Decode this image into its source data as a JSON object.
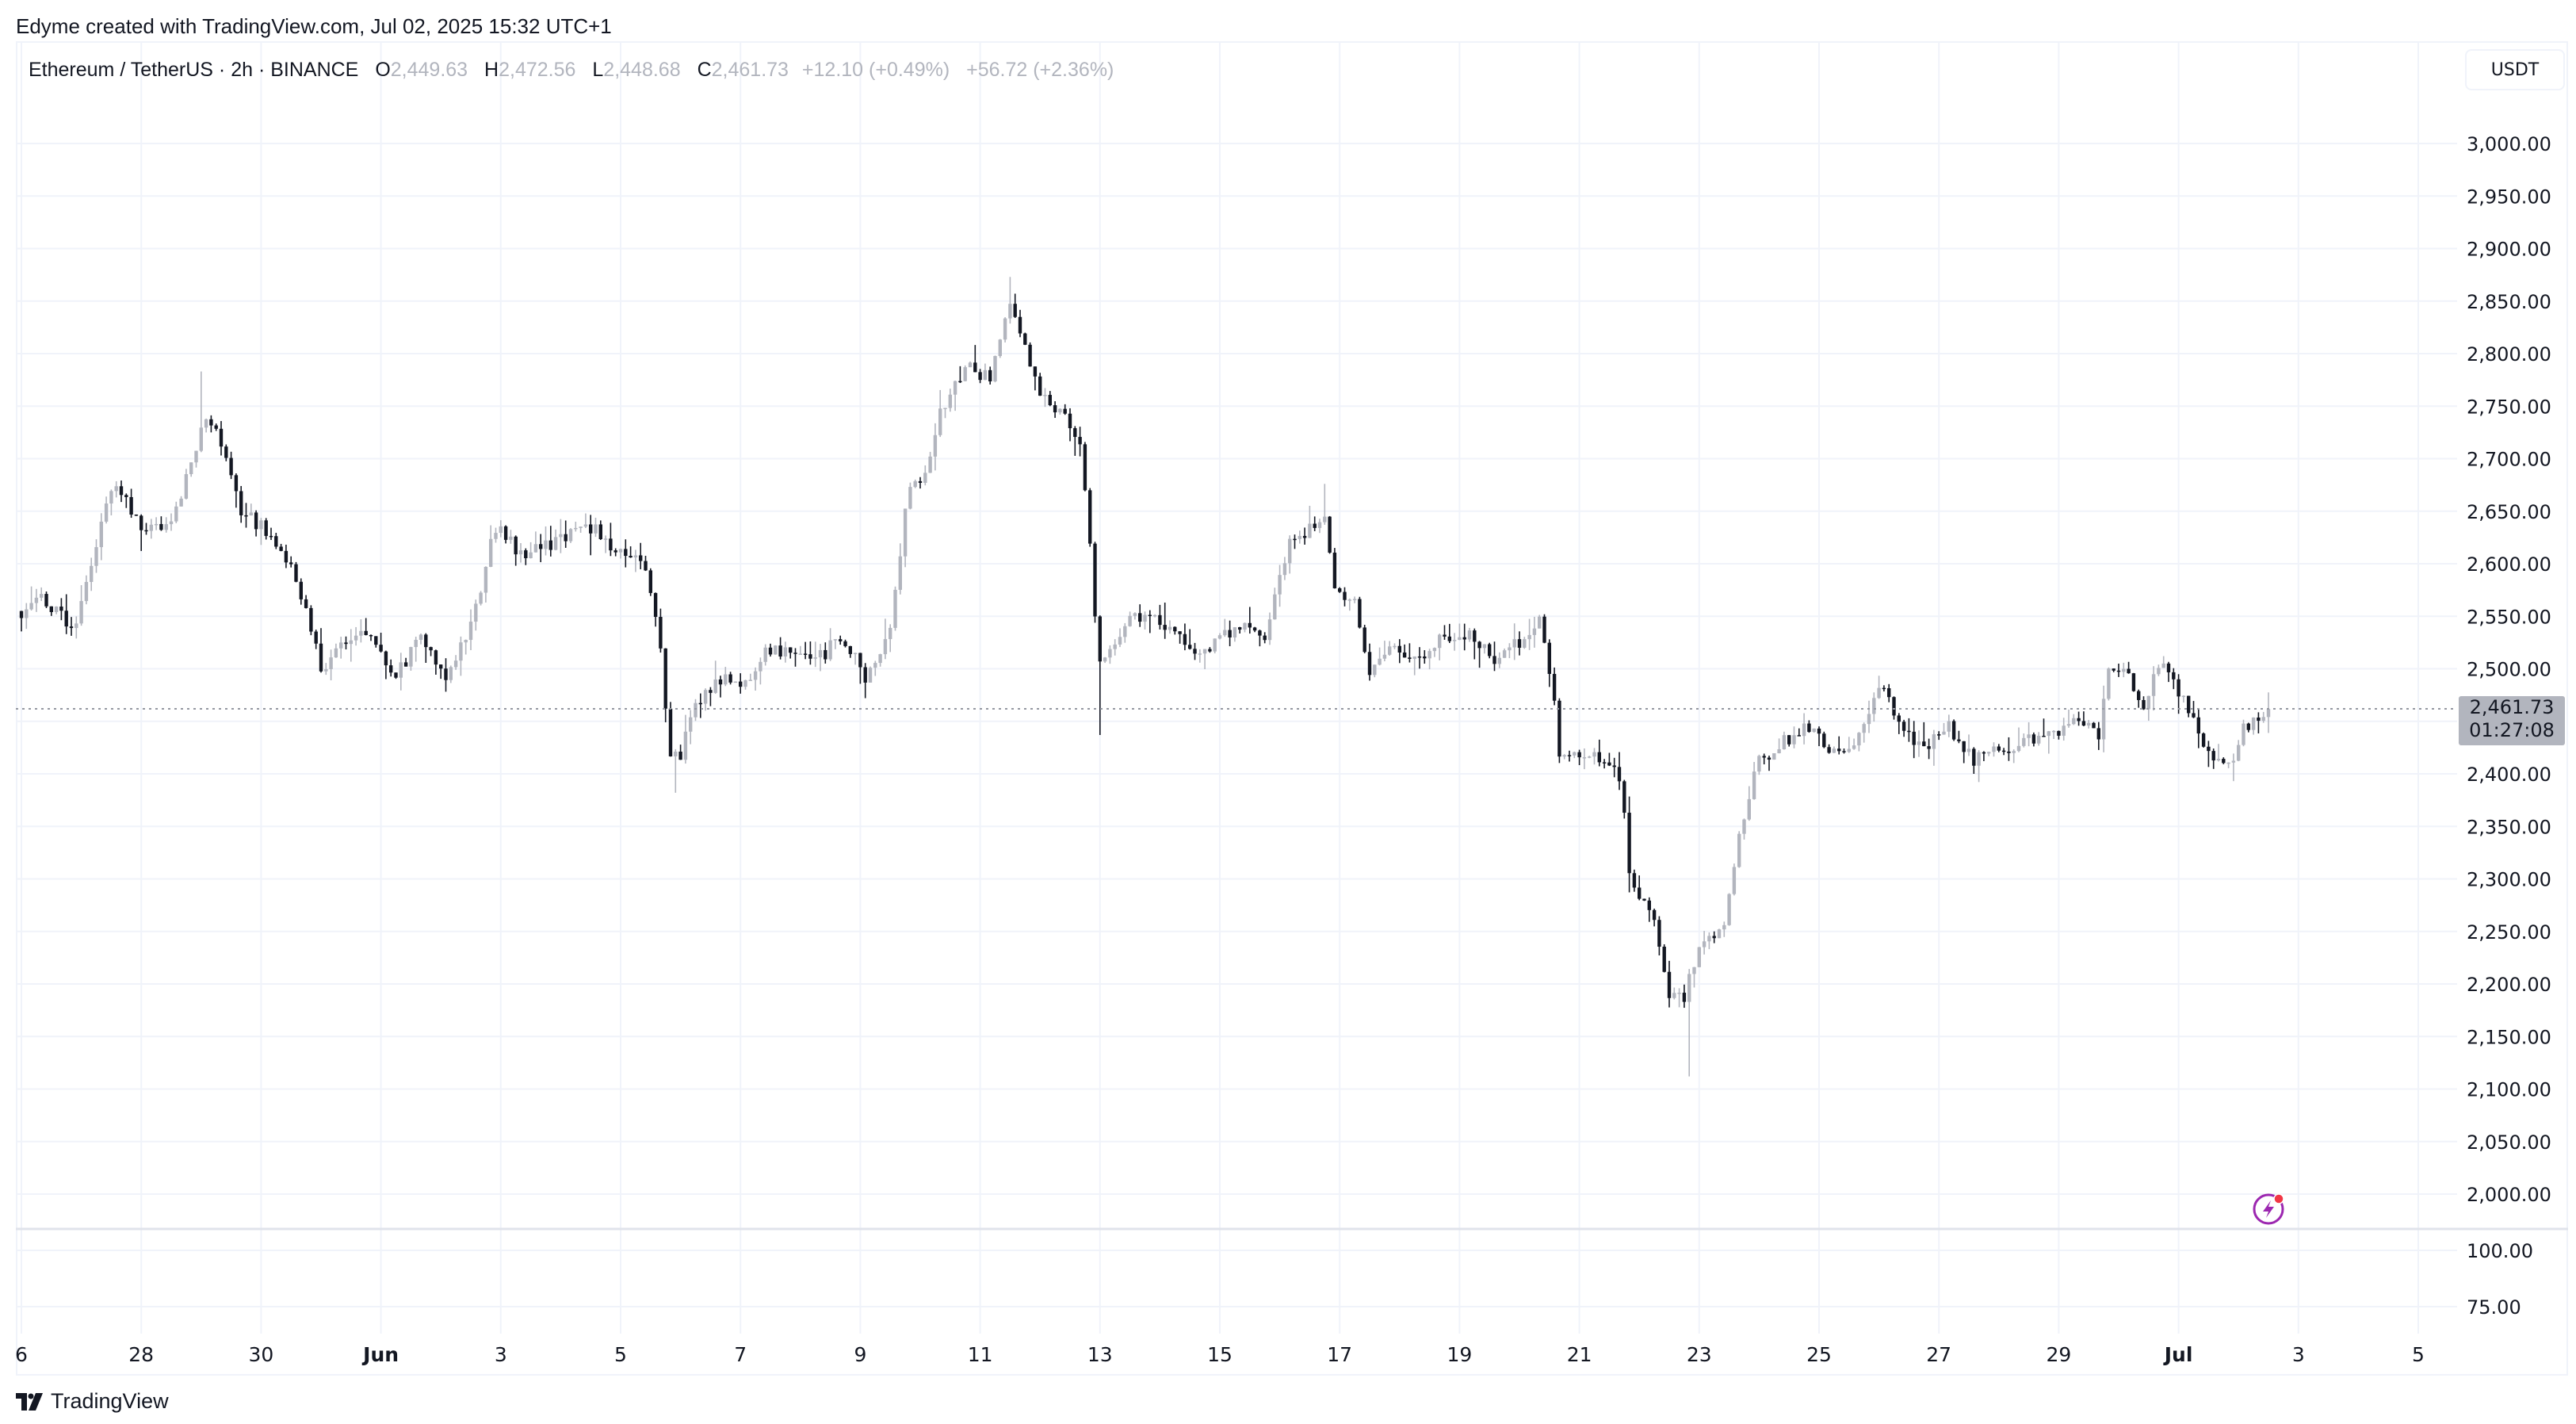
{
  "credit": "Edyme created with TradingView.com, Jul 02, 2025 15:32 UTC+1",
  "legend": {
    "symbol": "Ethereum / TetherUS · 2h · BINANCE",
    "o_label": "O",
    "o": "2,449.63",
    "h_label": "H",
    "h": "2,472.56",
    "l_label": "L",
    "l": "2,448.68",
    "c_label": "C",
    "c": "2,461.73",
    "change": "+12.10 (+0.49%)",
    "volume_change": "+56.72 (+2.36%)"
  },
  "currency_button": "USDT",
  "last_price": {
    "price": "2,461.73",
    "countdown": "01:27:08",
    "value": 2461.73
  },
  "volume_axis": [
    "100.00",
    "75.00"
  ],
  "brand": "TradingView",
  "colors": {
    "up": "#b2b5be",
    "down": "#131722",
    "grid": "#f0f3fa",
    "alert": "#9c27b0"
  },
  "chart_data": {
    "type": "candlestick",
    "title": "Ethereum / TetherUS · 2h · BINANCE",
    "interval_hours": 2,
    "x_unit": "days since May 26, 2025",
    "ylim": [
      1975,
      3010
    ],
    "y_ticks": [
      3000,
      2950,
      2900,
      2850,
      2800,
      2750,
      2700,
      2650,
      2600,
      2550,
      2500,
      2450,
      2400,
      2350,
      2300,
      2250,
      2200,
      2150,
      2100,
      2050,
      2000
    ],
    "x_ticks": [
      {
        "day": 0,
        "label": "6",
        "bold": false
      },
      {
        "day": 2,
        "label": "28",
        "bold": false
      },
      {
        "day": 4,
        "label": "30",
        "bold": false
      },
      {
        "day": 6,
        "label": "Jun",
        "bold": true
      },
      {
        "day": 8,
        "label": "3",
        "bold": false
      },
      {
        "day": 10,
        "label": "5",
        "bold": false
      },
      {
        "day": 12,
        "label": "7",
        "bold": false
      },
      {
        "day": 14,
        "label": "9",
        "bold": false
      },
      {
        "day": 16,
        "label": "11",
        "bold": false
      },
      {
        "day": 18,
        "label": "13",
        "bold": false
      },
      {
        "day": 20,
        "label": "15",
        "bold": false
      },
      {
        "day": 22,
        "label": "17",
        "bold": false
      },
      {
        "day": 24,
        "label": "19",
        "bold": false
      },
      {
        "day": 26,
        "label": "21",
        "bold": false
      },
      {
        "day": 28,
        "label": "23",
        "bold": false
      },
      {
        "day": 30,
        "label": "25",
        "bold": false
      },
      {
        "day": 32,
        "label": "27",
        "bold": false
      },
      {
        "day": 34,
        "label": "29",
        "bold": false
      },
      {
        "day": 36,
        "label": "Jul",
        "bold": true
      },
      {
        "day": 38,
        "label": "3",
        "bold": false
      },
      {
        "day": 40,
        "label": "5",
        "bold": false
      }
    ],
    "close_path": [
      [
        0,
        2555
      ],
      [
        0.19,
        2571
      ],
      [
        0.88,
        2539
      ],
      [
        1.16,
        2602
      ],
      [
        1.57,
        2681
      ],
      [
        1.98,
        2634
      ],
      [
        2.4,
        2634
      ],
      [
        2.67,
        2665
      ],
      [
        3.09,
        2744
      ],
      [
        3.36,
        2712
      ],
      [
        3.64,
        2650
      ],
      [
        4.05,
        2634
      ],
      [
        4.46,
        2602
      ],
      [
        4.74,
        2555
      ],
      [
        5.01,
        2500
      ],
      [
        5.43,
        2531
      ],
      [
        5.84,
        2531
      ],
      [
        6.25,
        2492
      ],
      [
        6.67,
        2531
      ],
      [
        7.08,
        2492
      ],
      [
        7.49,
        2539
      ],
      [
        7.91,
        2634
      ],
      [
        8.32,
        2610
      ],
      [
        8.73,
        2618
      ],
      [
        9.15,
        2626
      ],
      [
        9.56,
        2634
      ],
      [
        9.97,
        2610
      ],
      [
        10.39,
        2602
      ],
      [
        10.66,
        2524
      ],
      [
        10.8,
        2421
      ],
      [
        10.99,
        2413
      ],
      [
        11.21,
        2461
      ],
      [
        11.63,
        2492
      ],
      [
        12.04,
        2484
      ],
      [
        12.45,
        2516
      ],
      [
        12.87,
        2516
      ],
      [
        13.28,
        2508
      ],
      [
        13.69,
        2531
      ],
      [
        14.1,
        2492
      ],
      [
        14.52,
        2539
      ],
      [
        14.79,
        2665
      ],
      [
        15.07,
        2681
      ],
      [
        15.34,
        2744
      ],
      [
        15.76,
        2791
      ],
      [
        16.17,
        2775
      ],
      [
        16.53,
        2854
      ],
      [
        16.72,
        2807
      ],
      [
        17.0,
        2760
      ],
      [
        17.41,
        2744
      ],
      [
        17.69,
        2712
      ],
      [
        17.82,
        2634
      ],
      [
        17.96,
        2508
      ],
      [
        18.37,
        2539
      ],
      [
        18.79,
        2555
      ],
      [
        19.2,
        2539
      ],
      [
        19.61,
        2508
      ],
      [
        20.03,
        2531
      ],
      [
        20.44,
        2539
      ],
      [
        20.72,
        2524
      ],
      [
        21.13,
        2618
      ],
      [
        21.54,
        2634
      ],
      [
        21.74,
        2650
      ],
      [
        21.9,
        2571
      ],
      [
        22.23,
        2571
      ],
      [
        22.51,
        2492
      ],
      [
        22.92,
        2524
      ],
      [
        23.33,
        2508
      ],
      [
        23.75,
        2531
      ],
      [
        24.16,
        2531
      ],
      [
        24.57,
        2508
      ],
      [
        24.99,
        2524
      ],
      [
        25.32,
        2547
      ],
      [
        25.54,
        2492
      ],
      [
        25.67,
        2413
      ],
      [
        26.09,
        2421
      ],
      [
        26.5,
        2413
      ],
      [
        26.72,
        2382
      ],
      [
        26.86,
        2288
      ],
      [
        27.19,
        2272
      ],
      [
        27.47,
        2193
      ],
      [
        27.74,
        2185
      ],
      [
        28.02,
        2240
      ],
      [
        28.43,
        2256
      ],
      [
        28.71,
        2351
      ],
      [
        28.98,
        2413
      ],
      [
        29.39,
        2429
      ],
      [
        29.81,
        2445
      ],
      [
        30.22,
        2421
      ],
      [
        30.63,
        2429
      ],
      [
        31.05,
        2492
      ],
      [
        31.32,
        2445
      ],
      [
        31.74,
        2421
      ],
      [
        32.15,
        2445
      ],
      [
        32.56,
        2413
      ],
      [
        32.98,
        2421
      ],
      [
        33.39,
        2429
      ],
      [
        33.94,
        2437
      ],
      [
        34.35,
        2453
      ],
      [
        34.68,
        2437
      ],
      [
        34.85,
        2508
      ],
      [
        35.18,
        2492
      ],
      [
        35.37,
        2461
      ],
      [
        35.73,
        2508
      ],
      [
        36.14,
        2461
      ],
      [
        36.56,
        2413
      ],
      [
        36.84,
        2406
      ],
      [
        37.11,
        2445
      ],
      [
        37.52,
        2461.73
      ]
    ],
    "notable_wicks": [
      [
        3.0,
        2783
      ],
      [
        10.95,
        2382
      ],
      [
        16.5,
        2873
      ],
      [
        17.96,
        2437
      ],
      [
        21.74,
        2676
      ],
      [
        27.8,
        2112
      ]
    ]
  }
}
